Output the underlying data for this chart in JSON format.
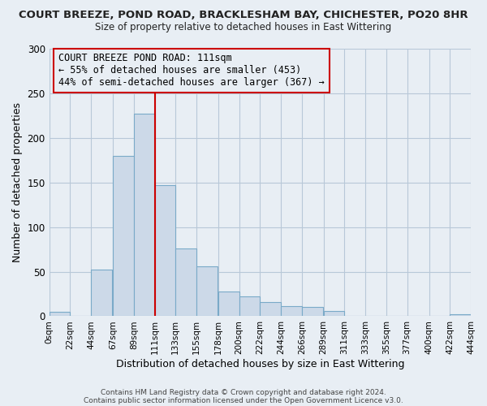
{
  "title": "COURT BREEZE, POND ROAD, BRACKLESHAM BAY, CHICHESTER, PO20 8HR",
  "subtitle": "Size of property relative to detached houses in East Wittering",
  "xlabel": "Distribution of detached houses by size in East Wittering",
  "ylabel": "Number of detached properties",
  "bar_color": "#ccd9e8",
  "bar_edge_color": "#7aaac8",
  "vline_x": 111,
  "vline_color": "#cc0000",
  "bins_left": [
    0,
    22,
    44,
    67,
    89,
    111,
    133,
    155,
    178,
    200,
    222,
    244,
    266,
    289,
    311,
    333,
    355,
    377,
    400,
    422
  ],
  "bin_heights": [
    5,
    0,
    52,
    180,
    227,
    147,
    76,
    56,
    28,
    22,
    16,
    11,
    10,
    6,
    0,
    0,
    0,
    0,
    0,
    2
  ],
  "bin_width": 22,
  "xlim": [
    0,
    444
  ],
  "ylim": [
    0,
    300
  ],
  "yticks": [
    0,
    50,
    100,
    150,
    200,
    250,
    300
  ],
  "xtick_labels": [
    "0sqm",
    "22sqm",
    "44sqm",
    "67sqm",
    "89sqm",
    "111sqm",
    "133sqm",
    "155sqm",
    "178sqm",
    "200sqm",
    "222sqm",
    "244sqm",
    "266sqm",
    "289sqm",
    "311sqm",
    "333sqm",
    "355sqm",
    "377sqm",
    "400sqm",
    "422sqm",
    "444sqm"
  ],
  "xtick_positions": [
    0,
    22,
    44,
    67,
    89,
    111,
    133,
    155,
    178,
    200,
    222,
    244,
    266,
    289,
    311,
    333,
    355,
    377,
    400,
    422,
    444
  ],
  "annotation_title": "COURT BREEZE POND ROAD: 111sqm",
  "annotation_line2": "← 55% of detached houses are smaller (453)",
  "annotation_line3": "44% of semi-detached houses are larger (367) →",
  "annotation_box_edge": "#cc0000",
  "footer_line1": "Contains HM Land Registry data © Crown copyright and database right 2024.",
  "footer_line2": "Contains public sector information licensed under the Open Government Licence v3.0.",
  "bg_color": "#e8eef4",
  "plot_bg_color": "#e8eef4",
  "grid_color": "#b8c8d8",
  "title_fontsize": 9.5,
  "subtitle_fontsize": 8.5
}
